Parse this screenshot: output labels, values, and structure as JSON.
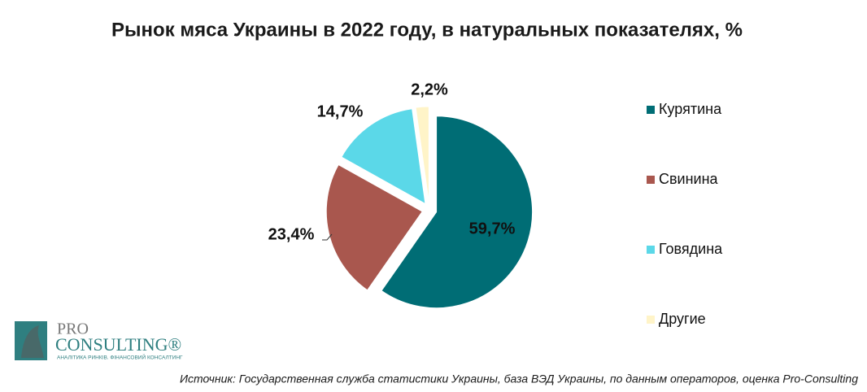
{
  "chart_data": {
    "type": "pie",
    "title": "Рынок мяса Украины в 2022 году, в натуральных показателях, %",
    "categories": [
      "Курятина",
      "Свинина",
      "Говядина",
      "Другие"
    ],
    "values": [
      59.7,
      23.4,
      14.7,
      2.2
    ],
    "value_labels": [
      "59,7%",
      "23,4%",
      "14,7%",
      "2,2%"
    ],
    "colors": [
      "#006d75",
      "#a9574e",
      "#5bd8e8",
      "#fff4c8"
    ],
    "legend": "right",
    "source": "Источник: Государственная служба статистики Украины, база ВЭД Украины, по данным операторов, оценка Pro-Consulting"
  },
  "logo": {
    "top": "PRO",
    "main": "CONSULTING®",
    "tagline": "АНАЛІТИКА РИНКІВ. ФІНАНСОВИЙ КОНСАЛТИНГ"
  }
}
